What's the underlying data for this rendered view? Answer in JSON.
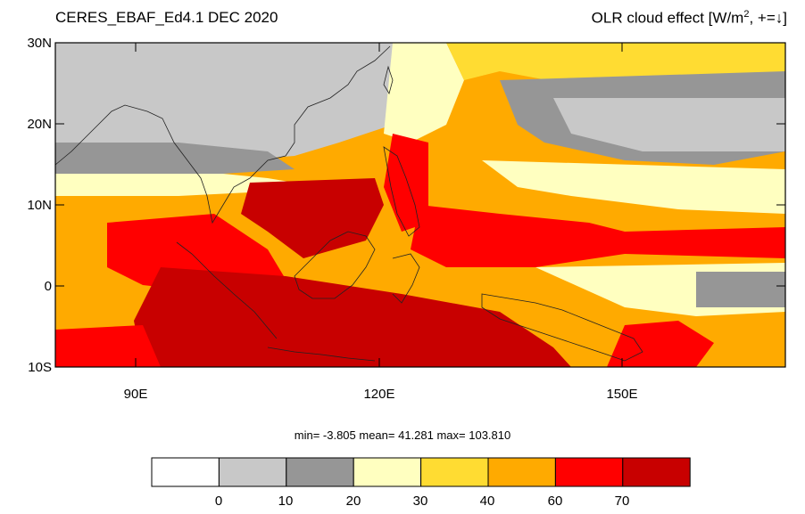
{
  "header": {
    "title_left": "CERES_EBAF_Ed4.1 DEC 2020",
    "title_right_text": "OLR cloud effect [W/m",
    "title_right_sup": "2",
    "title_right_tail": ", +=↓]"
  },
  "axes": {
    "y_labels": [
      "30N",
      "20N",
      "10N",
      "0",
      "10S"
    ],
    "x_labels": [
      "90E",
      "120E",
      "150E"
    ]
  },
  "stats": {
    "text": "min=  -3.805  mean=  41.281  max= 103.810"
  },
  "colorbar": {
    "labels": [
      "0",
      "10",
      "20",
      "30",
      "40",
      "60",
      "70"
    ],
    "colors": [
      "#ffffff",
      "#c8c8c8",
      "#969696",
      "#ffffc0",
      "#ffdc32",
      "#ffaa00",
      "#ff0000",
      "#c80000"
    ]
  },
  "chart_data": {
    "type": "heatmap",
    "title": "CERES_EBAF_Ed4.1 DEC 2020",
    "subtitle": "OLR cloud effect [W/m2, +=↓]",
    "lon_range": [
      80,
      170
    ],
    "lat_range": [
      -10,
      30
    ],
    "levels": [
      0,
      10,
      20,
      30,
      40,
      60,
      70
    ],
    "min": -3.805,
    "mean": 41.281,
    "max": 103.81
  }
}
